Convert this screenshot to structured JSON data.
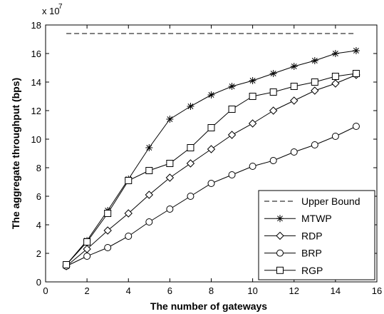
{
  "chart_data": {
    "type": "line",
    "title": "",
    "xlabel": "The number of gateways",
    "ylabel": "The aggregate throughput (bps)",
    "y_multiplier_label": "x 10",
    "y_multiplier_exponent": "7",
    "xlim": [
      0,
      16
    ],
    "ylim": [
      0,
      18
    ],
    "xticks": [
      0,
      2,
      4,
      6,
      8,
      10,
      12,
      14,
      16
    ],
    "yticks": [
      0,
      2,
      4,
      6,
      8,
      10,
      12,
      14,
      16,
      18
    ],
    "grid": false,
    "legend_position": "bottom-right",
    "x": [
      1,
      2,
      3,
      4,
      5,
      6,
      7,
      8,
      9,
      10,
      11,
      12,
      13,
      14,
      15
    ],
    "series": [
      {
        "name": "Upper Bound",
        "style": "dashed",
        "marker": "none",
        "x": [
          1,
          15
        ],
        "values": [
          17.4,
          17.4
        ]
      },
      {
        "name": "MTWP",
        "style": "solid",
        "marker": "star",
        "values": [
          1.2,
          2.9,
          5.0,
          7.2,
          9.4,
          11.4,
          12.3,
          13.1,
          13.7,
          14.1,
          14.6,
          15.1,
          15.5,
          16.0,
          16.2
        ]
      },
      {
        "name": "RDP",
        "style": "solid",
        "marker": "diamond",
        "values": [
          1.1,
          2.3,
          3.6,
          4.8,
          6.1,
          7.3,
          8.3,
          9.3,
          10.3,
          11.1,
          12.0,
          12.7,
          13.4,
          13.9,
          14.5
        ]
      },
      {
        "name": "BRP",
        "style": "solid",
        "marker": "circle",
        "values": [
          1.1,
          1.8,
          2.4,
          3.2,
          4.2,
          5.1,
          6.0,
          6.9,
          7.5,
          8.1,
          8.5,
          9.1,
          9.6,
          10.2,
          10.9
        ]
      },
      {
        "name": "RGP",
        "style": "solid",
        "marker": "square",
        "values": [
          1.2,
          2.8,
          4.8,
          7.1,
          7.8,
          8.3,
          9.4,
          10.8,
          12.1,
          13.0,
          13.3,
          13.7,
          14.0,
          14.4,
          14.6
        ]
      }
    ]
  }
}
